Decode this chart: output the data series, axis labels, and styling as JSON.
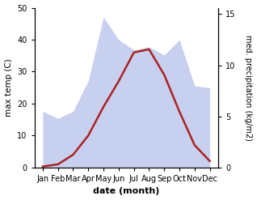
{
  "months": [
    "Jan",
    "Feb",
    "Mar",
    "Apr",
    "May",
    "Jun",
    "Jul",
    "Aug",
    "Sep",
    "Oct",
    "Nov",
    "Dec"
  ],
  "temp_max": [
    0.3,
    1.0,
    4.0,
    10.0,
    19.0,
    27.0,
    36.0,
    37.0,
    29.0,
    17.5,
    7.0,
    2.0
  ],
  "precip": [
    5.5,
    4.8,
    5.5,
    8.5,
    14.7,
    12.5,
    11.5,
    11.8,
    11.0,
    12.5,
    8.0,
    7.8
  ],
  "temp_color": "#aa2222",
  "precip_fill_color": "#c8d0f0",
  "temp_ylim": [
    0,
    50
  ],
  "precip_ylim": [
    0,
    15.625
  ],
  "xlabel": "date (month)",
  "ylabel_left": "max temp (C)",
  "ylabel_right": "med. precipitation (kg/m2)",
  "yticks_left": [
    0,
    10,
    20,
    30,
    40,
    50
  ],
  "yticks_right": [
    0,
    5,
    10,
    15
  ],
  "bg_color": "#ffffff"
}
